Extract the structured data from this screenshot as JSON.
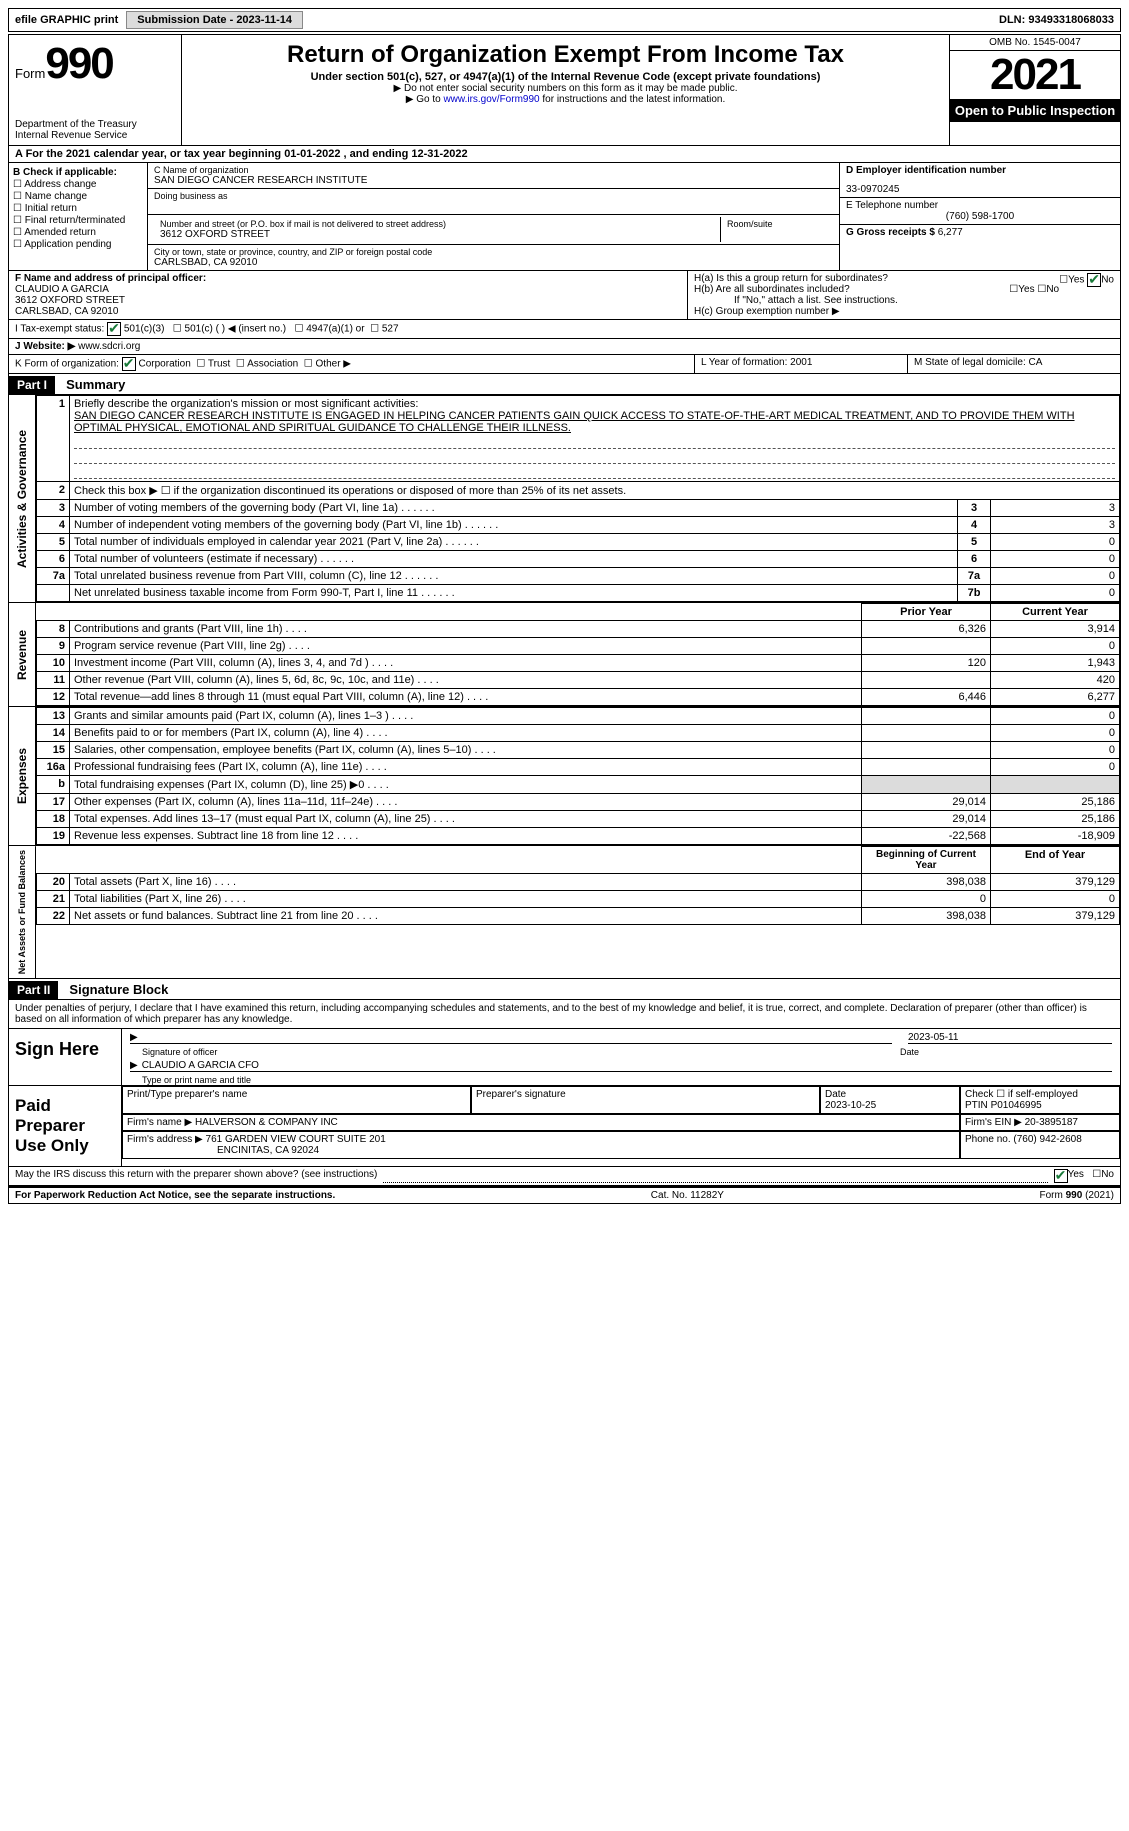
{
  "top": {
    "efile": "efile GRAPHIC print",
    "submission": "Submission Date - 2023-11-14",
    "dln": "DLN: 93493318068033"
  },
  "header": {
    "form_word": "Form",
    "form_num": "990",
    "dept": "Department of the Treasury",
    "irs": "Internal Revenue Service",
    "title": "Return of Organization Exempt From Income Tax",
    "sub1": "Under section 501(c), 527, or 4947(a)(1) of the Internal Revenue Code (except private foundations)",
    "sub2": "▶ Do not enter social security numbers on this form as it may be made public.",
    "sub3": "▶ Go to www.irs.gov/Form990 for instructions and the latest information.",
    "link": "www.irs.gov/Form990",
    "omb": "OMB No. 1545-0047",
    "year": "2021",
    "open": "Open to Public Inspection"
  },
  "lineA": "A For the 2021 calendar year, or tax year beginning 01-01-2022   , and ending 12-31-2022",
  "boxB": {
    "title": "B Check if applicable:",
    "opts": [
      "Address change",
      "Name change",
      "Initial return",
      "Final return/terminated",
      "Amended return",
      "Application pending"
    ]
  },
  "boxC": {
    "lbl_name": "C Name of organization",
    "org": "SAN DIEGO CANCER RESEARCH INSTITUTE",
    "dba_lbl": "Doing business as",
    "street_lbl": "Number and street (or P.O. box if mail is not delivered to street address)",
    "room_lbl": "Room/suite",
    "street": "3612 OXFORD STREET",
    "city_lbl": "City or town, state or province, country, and ZIP or foreign postal code",
    "city": "CARLSBAD, CA  92010"
  },
  "boxDE": {
    "d_lbl": "D Employer identification number",
    "ein": "33-0970245",
    "e_lbl": "E Telephone number",
    "phone": "(760) 598-1700",
    "g_lbl": "G Gross receipts $",
    "g_val": "6,277"
  },
  "boxF": {
    "lbl": "F  Name and address of principal officer:",
    "name": "CLAUDIO A GARCIA",
    "street": "3612 OXFORD STREET",
    "city": "CARLSBAD, CA  92010"
  },
  "boxH": {
    "a": "H(a)  Is this a group return for subordinates?",
    "b": "H(b)  Are all subordinates included?",
    "note": "If \"No,\" attach a list. See instructions.",
    "c": "H(c)  Group exemption number ▶",
    "yes": "Yes",
    "no": "No"
  },
  "boxI": {
    "lbl": "I   Tax-exempt status:",
    "o1": "501(c)(3)",
    "o2": "501(c) (   ) ◀ (insert no.)",
    "o3": "4947(a)(1) or",
    "o4": "527"
  },
  "boxJ": {
    "lbl": "J   Website: ▶",
    "val": "www.sdcri.org"
  },
  "boxK": {
    "lbl": "K Form of organization:",
    "o1": "Corporation",
    "o2": "Trust",
    "o3": "Association",
    "o4": "Other ▶"
  },
  "boxL": {
    "lbl": "L Year of formation:",
    "val": "2001"
  },
  "boxM": {
    "lbl": "M State of legal domicile:",
    "val": "CA"
  },
  "part1": {
    "hdr": "Part I",
    "title": "Summary",
    "line1_lbl": "Briefly describe the organization's mission or most significant activities:",
    "line1_txt": "SAN DIEGO CANCER RESEARCH INSTITUTE IS ENGAGED IN HELPING CANCER PATIENTS GAIN QUICK ACCESS TO STATE-OF-THE-ART MEDICAL TREATMENT, AND TO PROVIDE THEM WITH OPTIMAL PHYSICAL, EMOTIONAL AND SPIRITUAL GUIDANCE TO CHALLENGE THEIR ILLNESS.",
    "line2": "Check this box ▶ ☐ if the organization discontinued its operations or disposed of more than 25% of its net assets.",
    "rows_gov": [
      {
        "n": "3",
        "t": "Number of voting members of the governing body (Part VI, line 1a)",
        "box": "3",
        "v": "3"
      },
      {
        "n": "4",
        "t": "Number of independent voting members of the governing body (Part VI, line 1b)",
        "box": "4",
        "v": "3"
      },
      {
        "n": "5",
        "t": "Total number of individuals employed in calendar year 2021 (Part V, line 2a)",
        "box": "5",
        "v": "0"
      },
      {
        "n": "6",
        "t": "Total number of volunteers (estimate if necessary)",
        "box": "6",
        "v": "0"
      },
      {
        "n": "7a",
        "t": "Total unrelated business revenue from Part VIII, column (C), line 12",
        "box": "7a",
        "v": "0"
      },
      {
        "n": "",
        "t": "Net unrelated business taxable income from Form 990-T, Part I, line 11",
        "box": "7b",
        "v": "0"
      }
    ],
    "col_prior": "Prior Year",
    "col_curr": "Current Year",
    "rows_rev": [
      {
        "n": "8",
        "t": "Contributions and grants (Part VIII, line 1h)",
        "p": "6,326",
        "c": "3,914"
      },
      {
        "n": "9",
        "t": "Program service revenue (Part VIII, line 2g)",
        "p": "",
        "c": "0"
      },
      {
        "n": "10",
        "t": "Investment income (Part VIII, column (A), lines 3, 4, and 7d )",
        "p": "120",
        "c": "1,943"
      },
      {
        "n": "11",
        "t": "Other revenue (Part VIII, column (A), lines 5, 6d, 8c, 9c, 10c, and 11e)",
        "p": "",
        "c": "420"
      },
      {
        "n": "12",
        "t": "Total revenue—add lines 8 through 11 (must equal Part VIII, column (A), line 12)",
        "p": "6,446",
        "c": "6,277"
      }
    ],
    "rows_exp": [
      {
        "n": "13",
        "t": "Grants and similar amounts paid (Part IX, column (A), lines 1–3 )",
        "p": "",
        "c": "0"
      },
      {
        "n": "14",
        "t": "Benefits paid to or for members (Part IX, column (A), line 4)",
        "p": "",
        "c": "0"
      },
      {
        "n": "15",
        "t": "Salaries, other compensation, employee benefits (Part IX, column (A), lines 5–10)",
        "p": "",
        "c": "0"
      },
      {
        "n": "16a",
        "t": "Professional fundraising fees (Part IX, column (A), line 11e)",
        "p": "",
        "c": "0"
      },
      {
        "n": "b",
        "t": "Total fundraising expenses (Part IX, column (D), line 25) ▶0",
        "p": "",
        "c": "",
        "shaded": true
      },
      {
        "n": "17",
        "t": "Other expenses (Part IX, column (A), lines 11a–11d, 11f–24e)",
        "p": "29,014",
        "c": "25,186"
      },
      {
        "n": "18",
        "t": "Total expenses. Add lines 13–17 (must equal Part IX, column (A), line 25)",
        "p": "29,014",
        "c": "25,186"
      },
      {
        "n": "19",
        "t": "Revenue less expenses. Subtract line 18 from line 12",
        "p": "-22,568",
        "c": "-18,909"
      }
    ],
    "col_bcy": "Beginning of Current Year",
    "col_eoy": "End of Year",
    "rows_net": [
      {
        "n": "20",
        "t": "Total assets (Part X, line 16)",
        "p": "398,038",
        "c": "379,129"
      },
      {
        "n": "21",
        "t": "Total liabilities (Part X, line 26)",
        "p": "0",
        "c": "0"
      },
      {
        "n": "22",
        "t": "Net assets or fund balances. Subtract line 21 from line 20",
        "p": "398,038",
        "c": "379,129"
      }
    ],
    "side_gov": "Activities & Governance",
    "side_rev": "Revenue",
    "side_exp": "Expenses",
    "side_net": "Net Assets or Fund Balances"
  },
  "part2": {
    "hdr": "Part II",
    "title": "Signature Block",
    "decl": "Under penalties of perjury, I declare that I have examined this return, including accompanying schedules and statements, and to the best of my knowledge and belief, it is true, correct, and complete. Declaration of preparer (other than officer) is based on all information of which preparer has any knowledge.",
    "sign_here": "Sign Here",
    "sig_lbl": "Signature of officer",
    "date_lbl": "Date",
    "sig_date": "2023-05-11",
    "name_lbl": "Type or print name and title",
    "name_val": "CLAUDIO A GARCIA  CFO",
    "paid": "Paid Preparer Use Only",
    "prep_name_lbl": "Print/Type preparer's name",
    "prep_sig_lbl": "Preparer's signature",
    "prep_date_lbl": "Date",
    "prep_date": "2023-10-25",
    "chk_lbl": "Check ☐ if self-employed",
    "ptin_lbl": "PTIN",
    "ptin": "P01046995",
    "firm_lbl": "Firm's name    ▶",
    "firm": "HALVERSON & COMPANY INC",
    "firm_ein_lbl": "Firm's EIN ▶",
    "firm_ein": "20-3895187",
    "firm_addr_lbl": "Firm's address ▶",
    "firm_addr1": "761 GARDEN VIEW COURT SUITE 201",
    "firm_addr2": "ENCINITAS, CA  92024",
    "firm_phone_lbl": "Phone no.",
    "firm_phone": "(760) 942-2608",
    "discuss": "May the IRS discuss this return with the preparer shown above? (see instructions)",
    "yes": "Yes",
    "no": "No"
  },
  "footer": {
    "pra": "For Paperwork Reduction Act Notice, see the separate instructions.",
    "cat": "Cat. No. 11282Y",
    "form": "Form 990 (2021)"
  }
}
